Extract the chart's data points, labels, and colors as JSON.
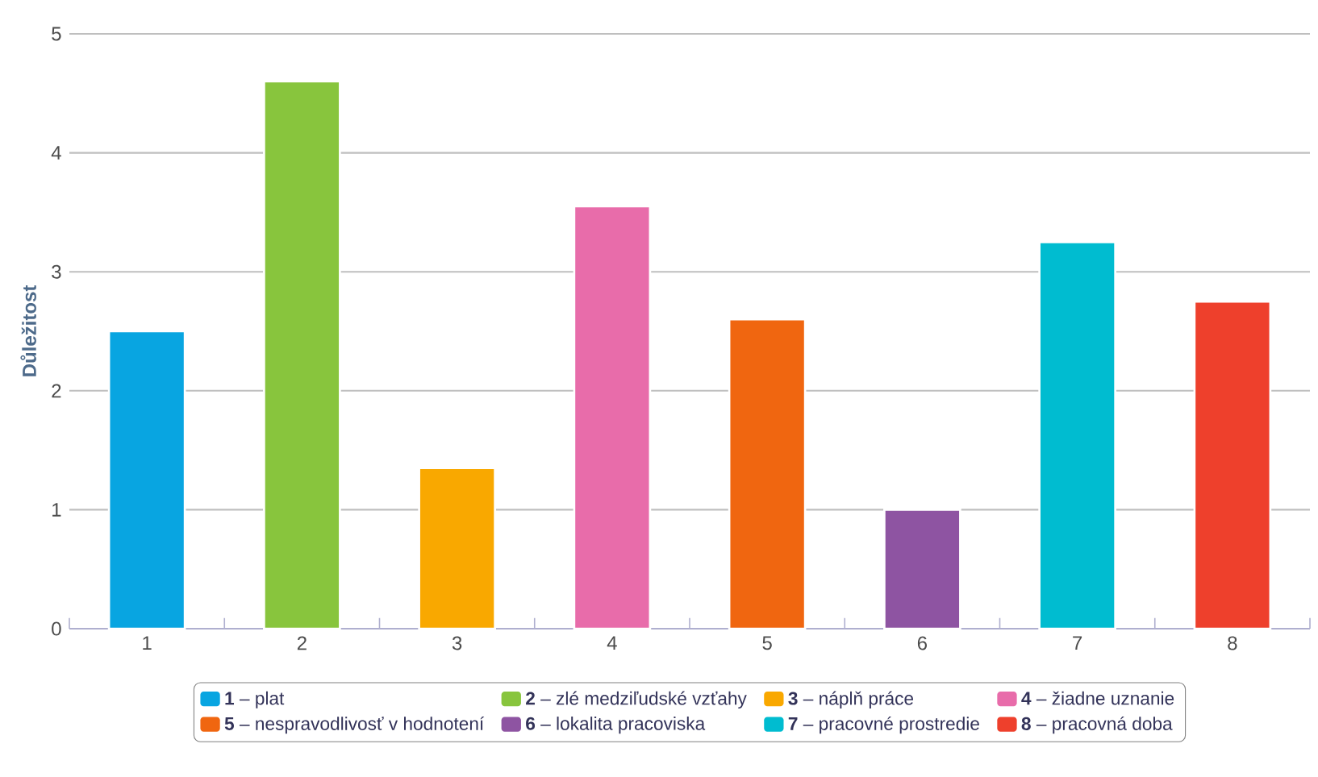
{
  "chart_data": {
    "type": "bar",
    "ylabel": "Důležitost",
    "categories": [
      "1",
      "2",
      "3",
      "4",
      "5",
      "6",
      "7",
      "8"
    ],
    "series": [
      {
        "name": "**1** – plat",
        "color": "#08a5e1",
        "values": [
          2.5,
          null,
          null,
          null,
          null,
          null,
          null,
          null
        ]
      },
      {
        "name": "**2** – zlé medziľudské vzťahy",
        "color": "#88c53d",
        "values": [
          null,
          4.6,
          null,
          null,
          null,
          null,
          null,
          null
        ]
      },
      {
        "name": "**3** – náplň práce",
        "color": "#f9a800",
        "values": [
          null,
          null,
          1.35,
          null,
          null,
          null,
          null,
          null
        ]
      },
      {
        "name": "**4** – žiadne uznanie",
        "color": "#e86caa",
        "values": [
          null,
          null,
          null,
          3.55,
          null,
          null,
          null,
          null
        ]
      },
      {
        "name": "**5** – nespravodlivosť v hodnotení",
        "color": "#f06610",
        "values": [
          null,
          null,
          null,
          null,
          2.6,
          null,
          null,
          null
        ]
      },
      {
        "name": "**6** – lokalita pracoviska",
        "color": "#8e54a2",
        "values": [
          null,
          null,
          null,
          null,
          null,
          1.0,
          null,
          null
        ]
      },
      {
        "name": "**7** – pracovné prostredie",
        "color": "#00bcd0",
        "values": [
          null,
          null,
          null,
          null,
          null,
          null,
          3.25,
          null
        ]
      },
      {
        "name": "**8** – pracovná doba",
        "color": "#ee402c",
        "values": [
          null,
          null,
          null,
          null,
          null,
          null,
          null,
          2.75
        ]
      }
    ],
    "ylim": [
      0,
      5
    ],
    "yticks": [
      0,
      1,
      2,
      3,
      4,
      5
    ],
    "grid": "y",
    "legend": "bottom"
  }
}
